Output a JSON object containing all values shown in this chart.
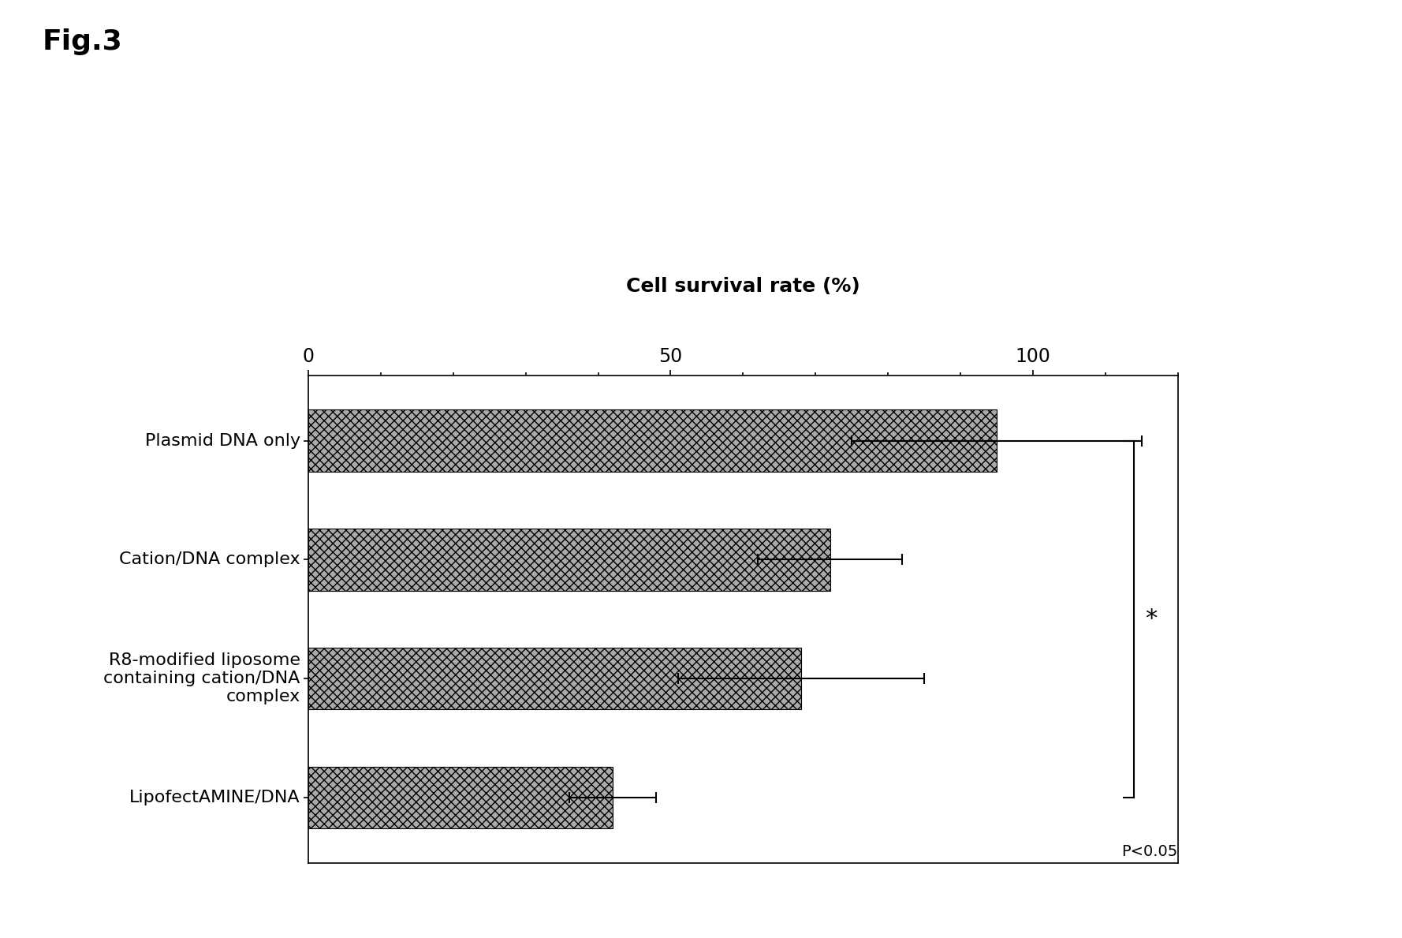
{
  "fig_label": "Fig.3",
  "title": "Cell survival rate (%)",
  "categories": [
    "Plasmid DNA only",
    "Cation/DNA complex",
    "R8-modified liposome\ncontaining cation/DNA\ncomplex",
    "LipofectAMINE/DNA"
  ],
  "values": [
    95,
    72,
    68,
    42
  ],
  "errors": [
    20,
    10,
    17,
    6
  ],
  "xlim": [
    0,
    120
  ],
  "xticks": [
    0,
    50,
    100
  ],
  "bar_color": "#aaaaaa",
  "bar_hatch": "xxx",
  "bar_edgecolor": "#000000",
  "background_color": "#ffffff",
  "significance_label": "*",
  "pvalue_label": "P<0.05",
  "title_fontsize": 18,
  "tick_fontsize": 17,
  "label_fontsize": 16,
  "fig_label_fontsize": 26
}
